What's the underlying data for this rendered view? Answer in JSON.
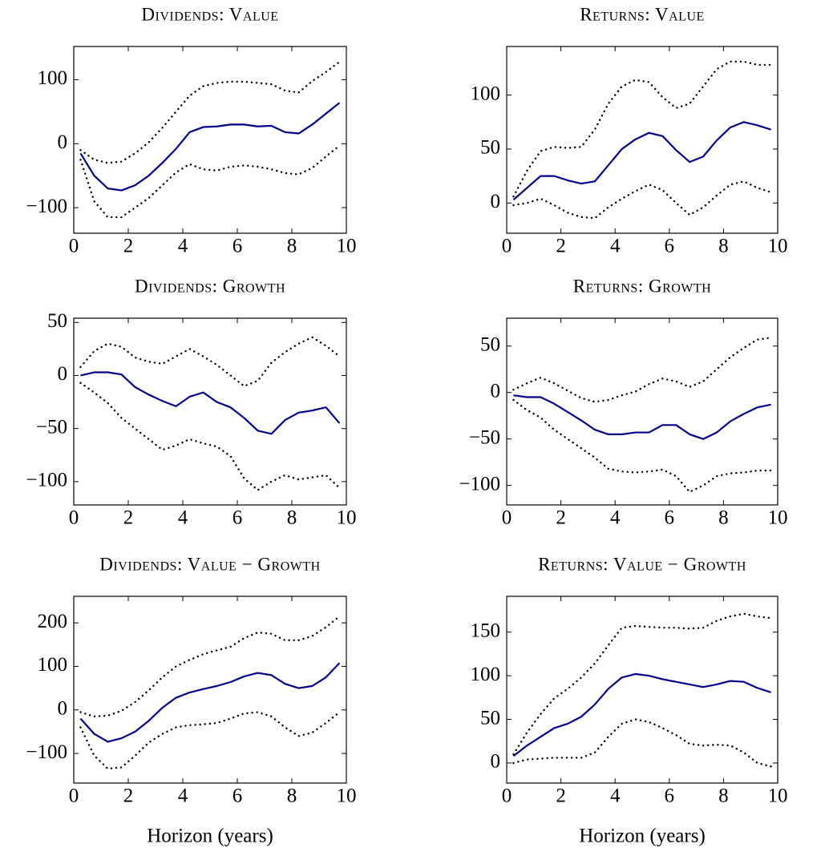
{
  "chart_data": [
    {
      "type": "line",
      "title": "Dividends: Value",
      "x": [
        0.25,
        0.75,
        1.25,
        1.75,
        2.25,
        2.75,
        3.25,
        3.75,
        4.25,
        4.75,
        5.25,
        5.75,
        6.25,
        6.75,
        7.25,
        7.75,
        8.25,
        8.75,
        9.25,
        9.75
      ],
      "xlim": [
        0,
        10
      ],
      "xticks": [
        0,
        2,
        4,
        6,
        8,
        10
      ],
      "ylim": [
        -140,
        152
      ],
      "yticks": [
        {
          "value": -100,
          "label": "−100"
        },
        0,
        100
      ],
      "series": [
        {
          "color": "#00008b",
          "style": "solid",
          "values": [
            -15,
            -50,
            -70,
            -73,
            -65,
            -50,
            -30,
            -8,
            18,
            26,
            27,
            30,
            30,
            27,
            28,
            18,
            16,
            30,
            47,
            64
          ]
        },
        {
          "color": "#000000",
          "style": "dotted",
          "values": [
            -10,
            -25,
            -30,
            -28,
            -15,
            2,
            25,
            50,
            75,
            90,
            95,
            97,
            97,
            95,
            93,
            83,
            80,
            98,
            112,
            128
          ]
        },
        {
          "color": "#000000",
          "style": "dotted",
          "values": [
            -25,
            -90,
            -115,
            -115,
            -100,
            -85,
            -65,
            -45,
            -32,
            -40,
            -42,
            -36,
            -34,
            -36,
            -40,
            -46,
            -48,
            -38,
            -20,
            -3
          ]
        }
      ]
    },
    {
      "type": "line",
      "title": "Returns: Value",
      "x": [
        0.25,
        0.75,
        1.25,
        1.75,
        2.25,
        2.75,
        3.25,
        3.75,
        4.25,
        4.75,
        5.25,
        5.75,
        6.25,
        6.75,
        7.25,
        7.75,
        8.25,
        8.75,
        9.25,
        9.75
      ],
      "xlim": [
        0,
        10
      ],
      "xticks": [
        0,
        2,
        4,
        6,
        8,
        10
      ],
      "ylim": [
        -28,
        145
      ],
      "yticks": [
        0,
        50,
        100
      ],
      "series": [
        {
          "color": "#00008b",
          "style": "solid",
          "values": [
            3,
            14,
            25,
            25,
            21,
            18,
            20,
            35,
            50,
            59,
            65,
            62,
            49,
            38,
            43,
            58,
            70,
            75,
            72,
            68
          ]
        },
        {
          "color": "#000000",
          "style": "dotted",
          "values": [
            6,
            30,
            48,
            52,
            51,
            52,
            68,
            92,
            108,
            114,
            112,
            98,
            88,
            92,
            108,
            124,
            131,
            131,
            128,
            128
          ]
        },
        {
          "color": "#000000",
          "style": "dotted",
          "values": [
            -2,
            0,
            4,
            -2,
            -9,
            -13,
            -14,
            -4,
            4,
            11,
            17,
            12,
            0,
            -11,
            -4,
            7,
            17,
            20,
            14,
            10
          ]
        }
      ]
    },
    {
      "type": "line",
      "title": "Dividends: Growth",
      "x": [
        0.25,
        0.75,
        1.25,
        1.75,
        2.25,
        2.75,
        3.25,
        3.75,
        4.25,
        4.75,
        5.25,
        5.75,
        6.25,
        6.75,
        7.25,
        7.75,
        8.25,
        8.75,
        9.25,
        9.75
      ],
      "xlim": [
        0,
        10
      ],
      "xticks": [
        0,
        2,
        4,
        6,
        8,
        10
      ],
      "ylim": [
        -122,
        54
      ],
      "yticks": [
        {
          "value": -100,
          "label": "−100"
        },
        {
          "value": -50,
          "label": "−50"
        },
        0,
        50
      ],
      "series": [
        {
          "color": "#00008b",
          "style": "solid",
          "values": [
            0,
            3,
            3,
            1,
            -11,
            -18,
            -24,
            -29,
            -20,
            -16,
            -25,
            -30,
            -40,
            -52,
            -55,
            -42,
            -35,
            -33,
            -30,
            -45
          ]
        },
        {
          "color": "#000000",
          "style": "dotted",
          "values": [
            8,
            23,
            30,
            27,
            17,
            13,
            11,
            18,
            25,
            18,
            10,
            0,
            -10,
            -5,
            12,
            22,
            30,
            36,
            28,
            18
          ]
        },
        {
          "color": "#000000",
          "style": "dotted",
          "values": [
            -7,
            -16,
            -26,
            -40,
            -50,
            -60,
            -70,
            -66,
            -60,
            -64,
            -67,
            -76,
            -97,
            -108,
            -100,
            -94,
            -98,
            -96,
            -94,
            -106
          ]
        }
      ]
    },
    {
      "type": "line",
      "title": "Returns: Growth",
      "x": [
        0.25,
        0.75,
        1.25,
        1.75,
        2.25,
        2.75,
        3.25,
        3.75,
        4.25,
        4.75,
        5.25,
        5.75,
        6.25,
        6.75,
        7.25,
        7.75,
        8.25,
        8.75,
        9.25,
        9.75
      ],
      "xlim": [
        0,
        10
      ],
      "xticks": [
        0,
        2,
        4,
        6,
        8,
        10
      ],
      "ylim": [
        -121,
        80
      ],
      "yticks": [
        {
          "value": -100,
          "label": "−100"
        },
        {
          "value": -50,
          "label": "−50"
        },
        0,
        50
      ],
      "series": [
        {
          "color": "#00008b",
          "style": "solid",
          "values": [
            -3,
            -5,
            -5,
            -12,
            -21,
            -30,
            -40,
            -45,
            -45,
            -43,
            -43,
            -35,
            -35,
            -45,
            -50,
            -43,
            -31,
            -23,
            -16,
            -13
          ]
        },
        {
          "color": "#000000",
          "style": "dotted",
          "values": [
            3,
            10,
            16,
            10,
            2,
            -6,
            -10,
            -8,
            -3,
            1,
            9,
            15,
            12,
            6,
            12,
            25,
            38,
            48,
            57,
            59
          ]
        },
        {
          "color": "#000000",
          "style": "dotted",
          "values": [
            -8,
            -19,
            -27,
            -40,
            -50,
            -60,
            -70,
            -82,
            -85,
            -86,
            -85,
            -83,
            -90,
            -107,
            -100,
            -90,
            -87,
            -86,
            -84,
            -84
          ]
        }
      ]
    },
    {
      "type": "line",
      "title": "Dividends: Value − Growth",
      "xlabel": "Horizon (years)",
      "x": [
        0.25,
        0.75,
        1.25,
        1.75,
        2.25,
        2.75,
        3.25,
        3.75,
        4.25,
        4.75,
        5.25,
        5.75,
        6.25,
        6.75,
        7.25,
        7.75,
        8.25,
        8.75,
        9.25,
        9.75
      ],
      "xlim": [
        0,
        10
      ],
      "xticks": [
        0,
        2,
        4,
        6,
        8,
        10
      ],
      "ylim": [
        -168,
        261
      ],
      "yticks": [
        {
          "value": -100,
          "label": "−100"
        },
        0,
        100,
        200
      ],
      "series": [
        {
          "color": "#00008b",
          "style": "solid",
          "values": [
            -20,
            -55,
            -73,
            -65,
            -50,
            -25,
            5,
            28,
            40,
            48,
            55,
            64,
            77,
            85,
            80,
            60,
            50,
            55,
            75,
            108
          ]
        },
        {
          "color": "#000000",
          "style": "dotted",
          "values": [
            -5,
            -15,
            -13,
            -2,
            18,
            45,
            75,
            100,
            115,
            128,
            137,
            145,
            165,
            178,
            175,
            160,
            160,
            170,
            190,
            215
          ]
        },
        {
          "color": "#000000",
          "style": "dotted",
          "values": [
            -40,
            -105,
            -135,
            -132,
            -105,
            -75,
            -55,
            -40,
            -35,
            -33,
            -30,
            -20,
            -8,
            -5,
            -15,
            -40,
            -60,
            -52,
            -30,
            -5
          ]
        }
      ]
    },
    {
      "type": "line",
      "title": "Returns: Value − Growth",
      "xlabel": "Horizon (years)",
      "x": [
        0.25,
        0.75,
        1.25,
        1.75,
        2.25,
        2.75,
        3.25,
        3.75,
        4.25,
        4.75,
        5.25,
        5.75,
        6.25,
        6.75,
        7.25,
        7.75,
        8.25,
        8.75,
        9.25,
        9.75
      ],
      "xlim": [
        0,
        10
      ],
      "xticks": [
        0,
        2,
        4,
        6,
        8,
        10
      ],
      "ylim": [
        -23,
        191
      ],
      "yticks": [
        0,
        50,
        100,
        150
      ],
      "series": [
        {
          "color": "#00008b",
          "style": "solid",
          "values": [
            8,
            20,
            30,
            40,
            45,
            53,
            67,
            85,
            98,
            102,
            100,
            96,
            93,
            90,
            87,
            90,
            94,
            93,
            86,
            81
          ]
        },
        {
          "color": "#000000",
          "style": "dotted",
          "values": [
            10,
            35,
            56,
            74,
            85,
            98,
            114,
            135,
            155,
            157,
            156,
            155,
            155,
            154,
            155,
            163,
            168,
            171,
            168,
            166
          ]
        },
        {
          "color": "#000000",
          "style": "dotted",
          "values": [
            0,
            4,
            5,
            6,
            6,
            6,
            12,
            30,
            45,
            50,
            47,
            40,
            32,
            22,
            20,
            21,
            20,
            12,
            0,
            -4
          ]
        }
      ]
    }
  ]
}
